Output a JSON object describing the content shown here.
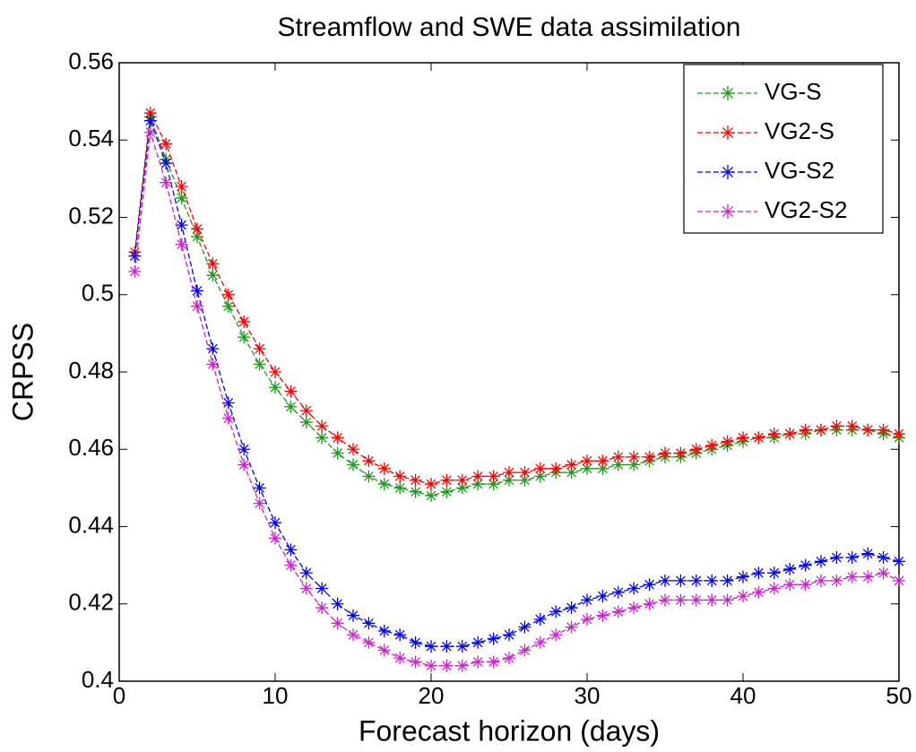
{
  "chart_data": {
    "type": "line",
    "title": "Streamflow and SWE data assimilation",
    "xlabel": "Forecast horizon (days)",
    "ylabel": "CRPSS",
    "x": [
      1,
      2,
      3,
      4,
      5,
      6,
      7,
      8,
      9,
      10,
      11,
      12,
      13,
      14,
      15,
      16,
      17,
      18,
      19,
      20,
      21,
      22,
      23,
      24,
      25,
      26,
      27,
      28,
      29,
      30,
      31,
      32,
      33,
      34,
      35,
      36,
      37,
      38,
      39,
      40,
      41,
      42,
      43,
      44,
      45,
      46,
      47,
      48,
      49,
      50
    ],
    "xlim": [
      0,
      50
    ],
    "xticks": [
      0,
      10,
      20,
      30,
      40,
      50
    ],
    "ylim": [
      0.4,
      0.56
    ],
    "yticks": [
      0.4,
      0.42,
      0.44,
      0.46,
      0.48,
      0.5,
      0.52,
      0.54,
      0.56
    ],
    "legend": "upper right",
    "series": [
      {
        "name": "VG-S",
        "color": "#1a9a1a",
        "values": [
          0.51,
          0.546,
          0.535,
          0.525,
          0.515,
          0.505,
          0.497,
          0.489,
          0.482,
          0.476,
          0.471,
          0.467,
          0.463,
          0.459,
          0.456,
          0.453,
          0.451,
          0.45,
          0.449,
          0.448,
          0.449,
          0.45,
          0.451,
          0.451,
          0.452,
          0.452,
          0.453,
          0.454,
          0.454,
          0.455,
          0.455,
          0.456,
          0.456,
          0.457,
          0.458,
          0.458,
          0.459,
          0.46,
          0.461,
          0.462,
          0.463,
          0.463,
          0.464,
          0.464,
          0.465,
          0.465,
          0.465,
          0.465,
          0.464,
          0.463
        ]
      },
      {
        "name": "VG2-S",
        "color": "#ff0000",
        "values": [
          0.511,
          0.547,
          0.539,
          0.528,
          0.517,
          0.508,
          0.5,
          0.493,
          0.486,
          0.48,
          0.475,
          0.47,
          0.466,
          0.463,
          0.46,
          0.457,
          0.455,
          0.453,
          0.452,
          0.451,
          0.452,
          0.452,
          0.453,
          0.453,
          0.454,
          0.454,
          0.455,
          0.455,
          0.456,
          0.457,
          0.457,
          0.458,
          0.458,
          0.458,
          0.459,
          0.459,
          0.46,
          0.461,
          0.462,
          0.463,
          0.463,
          0.464,
          0.464,
          0.465,
          0.465,
          0.466,
          0.466,
          0.465,
          0.465,
          0.464
        ]
      },
      {
        "name": "VG-S2",
        "color": "#0000ff",
        "values": [
          0.51,
          0.545,
          0.534,
          0.518,
          0.501,
          0.486,
          0.472,
          0.46,
          0.45,
          0.441,
          0.434,
          0.428,
          0.424,
          0.42,
          0.417,
          0.415,
          0.413,
          0.412,
          0.41,
          0.409,
          0.409,
          0.409,
          0.41,
          0.411,
          0.412,
          0.414,
          0.416,
          0.418,
          0.419,
          0.421,
          0.422,
          0.423,
          0.424,
          0.425,
          0.426,
          0.426,
          0.426,
          0.426,
          0.426,
          0.427,
          0.428,
          0.428,
          0.429,
          0.43,
          0.431,
          0.432,
          0.432,
          0.433,
          0.432,
          0.431
        ]
      },
      {
        "name": "VG2-S2",
        "color": "#cc22cc",
        "values": [
          0.506,
          0.542,
          0.529,
          0.513,
          0.497,
          0.482,
          0.468,
          0.456,
          0.446,
          0.437,
          0.43,
          0.424,
          0.419,
          0.415,
          0.412,
          0.41,
          0.408,
          0.406,
          0.405,
          0.404,
          0.404,
          0.404,
          0.405,
          0.405,
          0.406,
          0.408,
          0.41,
          0.412,
          0.414,
          0.416,
          0.417,
          0.418,
          0.419,
          0.42,
          0.421,
          0.421,
          0.421,
          0.421,
          0.421,
          0.422,
          0.423,
          0.424,
          0.425,
          0.425,
          0.426,
          0.426,
          0.427,
          0.427,
          0.428,
          0.426
        ]
      }
    ]
  }
}
